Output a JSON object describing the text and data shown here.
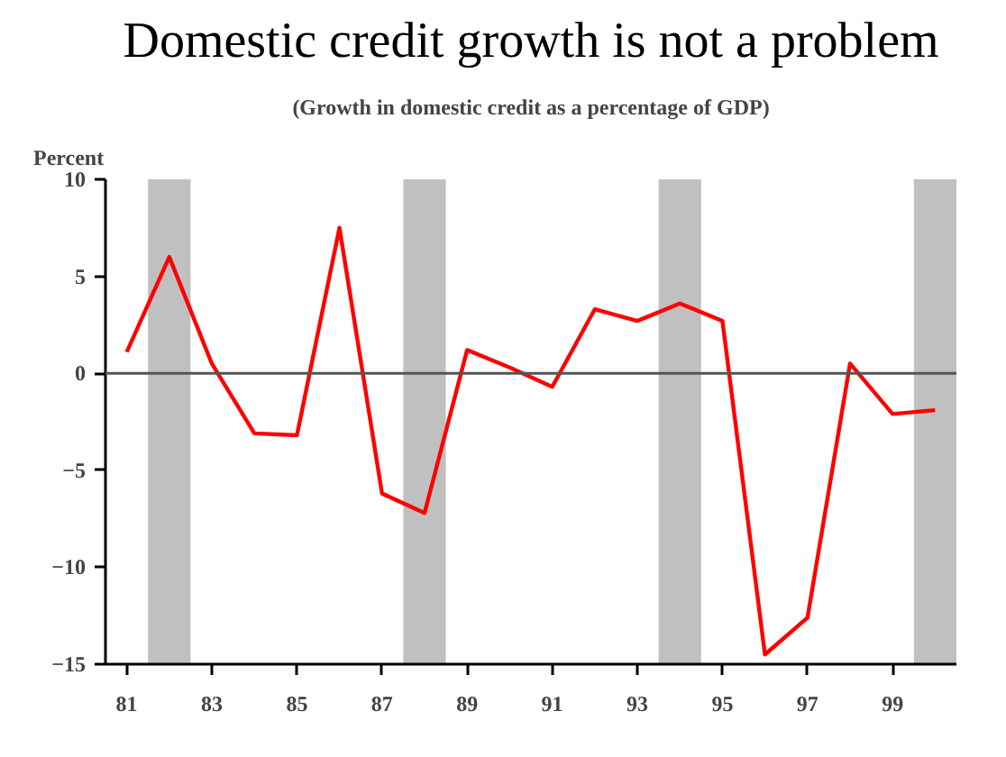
{
  "chart_data": {
    "type": "line",
    "title": "Domestic credit growth is not a problem",
    "subtitle": "(Growth in domestic credit as a percentage of GDP)",
    "ylabel": "Percent",
    "x": [
      1981,
      1982,
      1983,
      1984,
      1985,
      1986,
      1987,
      1988,
      1989,
      1990,
      1991,
      1992,
      1993,
      1994,
      1995,
      1996,
      1997,
      1998,
      1999,
      2000
    ],
    "series": [
      {
        "color": "#ff0000",
        "values": [
          1.1,
          6.0,
          0.5,
          -3.1,
          -3.2,
          7.5,
          -6.2,
          -7.2,
          1.2,
          0.3,
          -0.7,
          3.3,
          2.7,
          3.6,
          2.7,
          -14.5,
          -12.6,
          0.5,
          -2.1,
          -1.9
        ]
      }
    ],
    "xlim": [
      1980.5,
      2000.5
    ],
    "xticks": [
      {
        "value": 1981,
        "label": "81"
      },
      {
        "value": 1983,
        "label": "83"
      },
      {
        "value": 1985,
        "label": "85"
      },
      {
        "value": 1987,
        "label": "87"
      },
      {
        "value": 1989,
        "label": "89"
      },
      {
        "value": 1991,
        "label": "91"
      },
      {
        "value": 1993,
        "label": "93"
      },
      {
        "value": 1995,
        "label": "95"
      },
      {
        "value": 1997,
        "label": "97"
      },
      {
        "value": 1999,
        "label": "99"
      }
    ],
    "ylim": [
      -15,
      10
    ],
    "yticks": [
      -15,
      -10,
      -5,
      0,
      5,
      10
    ],
    "ref_lines": [
      {
        "axis": "y",
        "value": 0,
        "color": "#555555"
      }
    ],
    "bands": [
      {
        "axis": "x",
        "from": 1981.5,
        "to": 1982.5,
        "color": "#c0c0c0"
      },
      {
        "axis": "x",
        "from": 1987.5,
        "to": 1988.5,
        "color": "#c0c0c0"
      },
      {
        "axis": "x",
        "from": 1993.5,
        "to": 1994.5,
        "color": "#c0c0c0"
      },
      {
        "axis": "x",
        "from": 1999.5,
        "to": 2000.5,
        "color": "#c0c0c0"
      }
    ],
    "grid": false,
    "marker": "none",
    "line_style": "solid"
  }
}
